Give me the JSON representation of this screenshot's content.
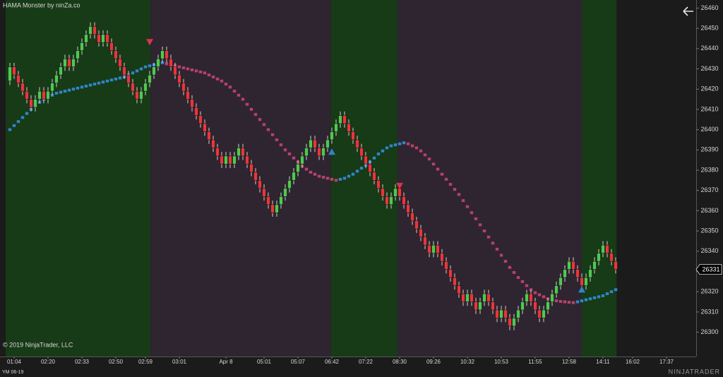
{
  "chart_data": {
    "type": "candlestick",
    "title": "HAMA Monster by ninZa.co",
    "copyright": "© 2019 NinjaTrader, LLC",
    "instrument": "YM 06-19",
    "logo": "NINJATRADER",
    "up_color": "#4fc94f",
    "down_color": "#e8363c",
    "ma_up_color": "#2f86c6",
    "ma_down_color": "#b8416a",
    "ylim": [
      26288,
      26464
    ],
    "yticks": [
      26300,
      26310,
      26320,
      26330,
      26340,
      26350,
      26360,
      26370,
      26380,
      26390,
      26400,
      26410,
      26420,
      26430,
      26440,
      26450,
      26460
    ],
    "xlim": [
      -1,
      162
    ],
    "xticks": [
      {
        "value": 1,
        "label": "01:04"
      },
      {
        "value": 9,
        "label": "02:20"
      },
      {
        "value": 17,
        "label": "02:33"
      },
      {
        "value": 25,
        "label": "02:50"
      },
      {
        "value": 32,
        "label": "02:59"
      },
      {
        "value": 40,
        "label": "03:01"
      },
      {
        "value": 51,
        "label": "Apr 8"
      },
      {
        "value": 60,
        "label": "05:01"
      },
      {
        "value": 68,
        "label": "05:07"
      },
      {
        "value": 76,
        "label": "06:42"
      },
      {
        "value": 84,
        "label": "07:22"
      },
      {
        "value": 92,
        "label": "08:30"
      },
      {
        "value": 100,
        "label": "09:26"
      },
      {
        "value": 108,
        "label": "10:32"
      },
      {
        "value": 116,
        "label": "10:53"
      },
      {
        "value": 124,
        "label": "11:55"
      },
      {
        "value": 132,
        "label": "12:58"
      },
      {
        "value": 140,
        "label": "14:11"
      },
      {
        "value": 147,
        "label": "16:02"
      },
      {
        "value": 155,
        "label": "17:37"
      }
    ],
    "zones": [
      {
        "start": -1,
        "end": 33.2,
        "color": "#173a17"
      },
      {
        "start": 33.2,
        "end": 75.8,
        "color": "#2e2530"
      },
      {
        "start": 75.8,
        "end": 91.5,
        "color": "#173a17"
      },
      {
        "start": 91.5,
        "end": 135,
        "color": "#2e2530"
      },
      {
        "start": 135,
        "end": 143.2,
        "color": "#173a17"
      }
    ],
    "open": [
      26424,
      26431,
      26427,
      26423,
      26419,
      26415,
      26411,
      26415,
      26419,
      26415,
      26419,
      26423,
      26427,
      26431,
      26435,
      26431,
      26435,
      26439,
      26443,
      26447,
      26451,
      26447,
      26443,
      26447,
      26443,
      26439,
      26435,
      26431,
      26427,
      26423,
      26419,
      26415,
      26419,
      26423,
      26427,
      26431,
      26435,
      26439,
      26435,
      26431,
      26427,
      26423,
      26419,
      26415,
      26411,
      26407,
      26403,
      26399,
      26395,
      26391,
      26387,
      26383,
      26387,
      26383,
      26387,
      26391,
      26387,
      26383,
      26379,
      26375,
      26371,
      26367,
      26363,
      26359,
      26363,
      26367,
      26371,
      26375,
      26379,
      26383,
      26387,
      26391,
      26395,
      26391,
      26387,
      26391,
      26395,
      26399,
      26403,
      26407,
      26403,
      26399,
      26395,
      26391,
      26387,
      26383,
      26379,
      26375,
      26371,
      26367,
      26363,
      26367,
      26371,
      26367,
      26363,
      26359,
      26355,
      26351,
      26347,
      26343,
      26339,
      26343,
      26339,
      26335,
      26331,
      26327,
      26323,
      26319,
      26315,
      26319,
      26315,
      26311,
      26315,
      26319,
      26315,
      26311,
      26307,
      26311,
      26307,
      26303,
      26307,
      26311,
      26315,
      26319,
      26315,
      26311,
      26307,
      26311,
      26315,
      26319,
      26323,
      26327,
      26331,
      26335,
      26331,
      26327,
      26323,
      26327,
      26331,
      26335,
      26339,
      26343,
      26339,
      26335
    ],
    "close": [
      26431,
      26427,
      26423,
      26419,
      26415,
      26411,
      26415,
      26419,
      26415,
      26419,
      26423,
      26427,
      26431,
      26435,
      26431,
      26435,
      26439,
      26443,
      26447,
      26451,
      26447,
      26443,
      26447,
      26443,
      26439,
      26435,
      26431,
      26427,
      26423,
      26419,
      26415,
      26419,
      26423,
      26427,
      26431,
      26435,
      26439,
      26435,
      26431,
      26427,
      26423,
      26419,
      26415,
      26411,
      26407,
      26403,
      26399,
      26395,
      26391,
      26387,
      26383,
      26387,
      26383,
      26387,
      26391,
      26387,
      26383,
      26379,
      26375,
      26371,
      26367,
      26363,
      26359,
      26363,
      26367,
      26371,
      26375,
      26379,
      26383,
      26387,
      26391,
      26395,
      26391,
      26387,
      26391,
      26395,
      26399,
      26403,
      26407,
      26403,
      26399,
      26395,
      26391,
      26387,
      26383,
      26379,
      26375,
      26371,
      26367,
      26363,
      26367,
      26371,
      26367,
      26363,
      26359,
      26355,
      26351,
      26347,
      26343,
      26339,
      26343,
      26339,
      26335,
      26331,
      26327,
      26323,
      26319,
      26315,
      26319,
      26315,
      26311,
      26315,
      26319,
      26315,
      26311,
      26307,
      26311,
      26307,
      26303,
      26307,
      26311,
      26315,
      26319,
      26315,
      26311,
      26307,
      26311,
      26315,
      26319,
      26323,
      26327,
      26331,
      26335,
      26331,
      26327,
      26323,
      26327,
      26331,
      26335,
      26339,
      26343,
      26339,
      26335,
      26331
    ],
    "high": [
      26433,
      26433,
      26429,
      26425,
      26421,
      26417,
      26417,
      26421,
      26421,
      26421,
      26425,
      26429,
      26433,
      26437,
      26437,
      26437,
      26441,
      26445,
      26449,
      26453,
      26453,
      26449,
      26449,
      26449,
      26445,
      26441,
      26437,
      26433,
      26429,
      26425,
      26421,
      26421,
      26425,
      26429,
      26433,
      26437,
      26441,
      26441,
      26437,
      26433,
      26429,
      26425,
      26421,
      26417,
      26413,
      26409,
      26405,
      26401,
      26397,
      26393,
      26389,
      26389,
      26389,
      26389,
      26393,
      26393,
      26389,
      26385,
      26381,
      26377,
      26373,
      26369,
      26365,
      26365,
      26369,
      26373,
      26377,
      26381,
      26385,
      26389,
      26393,
      26397,
      26397,
      26393,
      26393,
      26397,
      26401,
      26405,
      26409,
      26409,
      26405,
      26401,
      26397,
      26393,
      26389,
      26385,
      26381,
      26377,
      26373,
      26369,
      26369,
      26373,
      26373,
      26369,
      26365,
      26361,
      26357,
      26353,
      26349,
      26345,
      26345,
      26345,
      26341,
      26337,
      26333,
      26329,
      26325,
      26321,
      26321,
      26321,
      26317,
      26317,
      26321,
      26321,
      26317,
      26313,
      26313,
      26313,
      26309,
      26309,
      26313,
      26317,
      26321,
      26321,
      26317,
      26313,
      26313,
      26317,
      26321,
      26325,
      26329,
      26333,
      26337,
      26337,
      26333,
      26329,
      26329,
      26333,
      26337,
      26341,
      26345,
      26345,
      26341,
      26337
    ],
    "low": [
      26422,
      26425,
      26421,
      26417,
      26413,
      26409,
      26409,
      26413,
      26413,
      26413,
      26417,
      26421,
      26425,
      26429,
      26429,
      26429,
      26433,
      26437,
      26441,
      26445,
      26445,
      26441,
      26441,
      26441,
      26437,
      26433,
      26429,
      26425,
      26421,
      26417,
      26413,
      26413,
      26417,
      26421,
      26425,
      26429,
      26433,
      26433,
      26429,
      26425,
      26421,
      26417,
      26413,
      26409,
      26405,
      26401,
      26397,
      26393,
      26389,
      26385,
      26381,
      26381,
      26381,
      26381,
      26385,
      26385,
      26381,
      26377,
      26373,
      26369,
      26365,
      26361,
      26357,
      26357,
      26361,
      26365,
      26369,
      26373,
      26377,
      26381,
      26385,
      26389,
      26389,
      26385,
      26385,
      26389,
      26393,
      26397,
      26401,
      26401,
      26397,
      26393,
      26389,
      26385,
      26381,
      26377,
      26373,
      26369,
      26365,
      26361,
      26361,
      26365,
      26365,
      26361,
      26357,
      26353,
      26349,
      26345,
      26341,
      26337,
      26337,
      26337,
      26333,
      26329,
      26325,
      26321,
      26317,
      26313,
      26313,
      26313,
      26309,
      26309,
      26313,
      26313,
      26309,
      26305,
      26305,
      26305,
      26301,
      26301,
      26305,
      26309,
      26313,
      26313,
      26309,
      26305,
      26305,
      26309,
      26313,
      26317,
      26321,
      26325,
      26329,
      26329,
      26325,
      26321,
      26321,
      26325,
      26329,
      26333,
      26337,
      26337,
      26333,
      26329
    ],
    "ma": [
      26400,
      26402,
      26404,
      26406,
      26408,
      26410,
      26412,
      26413.5,
      26415,
      26416,
      26417,
      26418,
      26418.5,
      26419,
      26419.5,
      26420,
      26420.5,
      26421,
      26421.5,
      26422,
      26422.5,
      26423,
      26423.5,
      26424,
      26424.5,
      26425,
      26425.5,
      26426,
      26427,
      26428,
      26429,
      26430,
      26431,
      26431.5,
      26432,
      26432.5,
      26433,
      26432.5,
      26432,
      26431.5,
      26431,
      26430.5,
      26430,
      26429.5,
      26429,
      26428.5,
      26428,
      26427,
      26426,
      26425,
      26424,
      26422.5,
      26421,
      26419,
      26417,
      26415,
      26412.5,
      26410,
      26407.5,
      26405,
      26402.5,
      26400,
      26397.5,
      26395,
      26392.5,
      26390,
      26388,
      26386,
      26384,
      26382,
      26380.5,
      26379,
      26378,
      26377,
      26376.5,
      26376,
      26375.5,
      26375,
      26375.5,
      26376,
      26377,
      26378,
      26379.5,
      26381,
      26382.5,
      26384,
      26386,
      26388,
      26389.5,
      26391,
      26392,
      26392.5,
      26393,
      26393.5,
      26393,
      26392,
      26391,
      26389.5,
      26387.5,
      26385.5,
      26383,
      26380.5,
      26378,
      26375.5,
      26373,
      26370.5,
      26368,
      26365,
      26362,
      26359,
      26356,
      26353,
      26350,
      26347,
      26344,
      26341,
      26338,
      26335,
      26332,
      26329.5,
      26327,
      26325,
      26323,
      26321,
      26319.5,
      26318.5,
      26317.5,
      26316.5,
      26316,
      26315.5,
      26315.2,
      26315,
      26314.8,
      26314.6,
      26315,
      26315.5,
      26316,
      26316.5,
      26317,
      26317.5,
      26318,
      26319,
      26320,
      26321
    ],
    "signals": [
      {
        "index": 33,
        "price": 26443,
        "direction": "down",
        "color": "#d9334f"
      },
      {
        "index": 76,
        "price": 26389,
        "direction": "up",
        "color": "#2f86c6"
      },
      {
        "index": 92,
        "price": 26372,
        "direction": "down",
        "color": "#d9334f"
      },
      {
        "index": 135,
        "price": 26321,
        "direction": "up",
        "color": "#2f86c6"
      }
    ]
  }
}
